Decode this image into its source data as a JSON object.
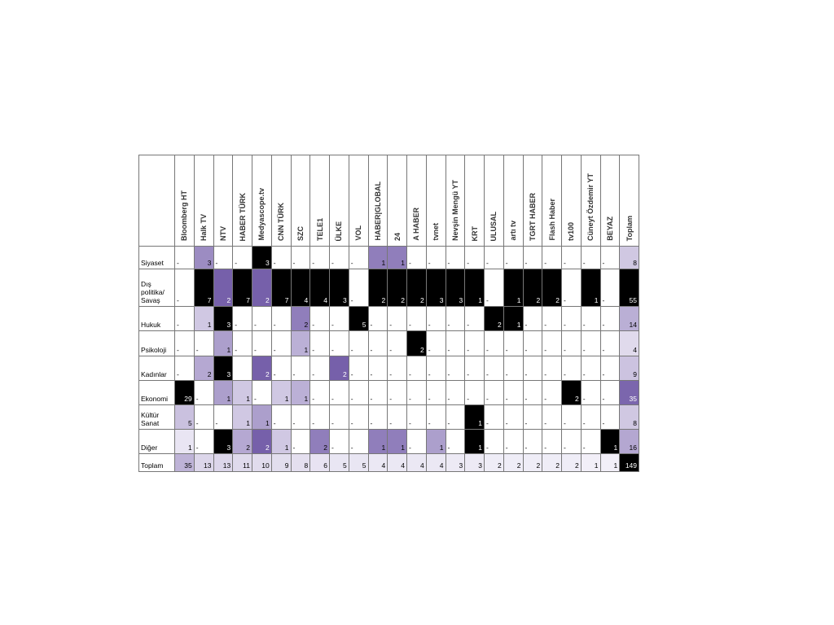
{
  "table": {
    "columns": [
      "Bloomberg HT",
      "Halk TV",
      "NTV",
      "HABER TÜRK",
      "Medyascope.tv",
      "CNN TÜRK",
      "SZC",
      "TELE1",
      "ÜLKE",
      "VOL",
      "HABER|GLOBAL",
      "24",
      "A HABER",
      "tvnet",
      "Nevşin Mengü YT",
      "KRT",
      "ULUSAL",
      "artı tv",
      "TGRT HABER",
      "Flash Haber",
      "tv100",
      "Cüneyt Özdemir YT",
      "BEYAZ",
      "Toplam"
    ],
    "rows": [
      {
        "label": "Siyaset",
        "cells": [
          "-",
          3,
          "-",
          "-",
          3,
          "-",
          "-",
          "-",
          "-",
          "-",
          1,
          1,
          "-",
          "-",
          "-",
          "-",
          "-",
          "-",
          "-",
          "-",
          "-",
          "-",
          "-",
          8
        ]
      },
      {
        "label": "Dış politika/ Savaş",
        "cells": [
          "-",
          7,
          2,
          7,
          2,
          7,
          4,
          4,
          3,
          "-",
          2,
          2,
          2,
          3,
          3,
          1,
          "-",
          1,
          2,
          2,
          "-",
          1,
          "-",
          55
        ]
      },
      {
        "label": "Hukuk",
        "cells": [
          "-",
          1,
          3,
          "-",
          "-",
          "-",
          2,
          "-",
          "-",
          5,
          "-",
          "-",
          "-",
          "-",
          "-",
          "-",
          2,
          1,
          "-",
          "-",
          "-",
          "-",
          "-",
          14
        ]
      },
      {
        "label": "Psikoloji",
        "cells": [
          "-",
          "-",
          1,
          "-",
          "-",
          "-",
          1,
          "-",
          "-",
          "-",
          "-",
          "-",
          2,
          "-",
          "-",
          "-",
          "-",
          "-",
          "-",
          "-",
          "-",
          "-",
          "-",
          4
        ]
      },
      {
        "label": "Kadınlar",
        "cells": [
          "-",
          2,
          3,
          null,
          2,
          "-",
          "-",
          "-",
          2,
          "-",
          "-",
          "-",
          "-",
          "-",
          "-",
          "-",
          "-",
          "-",
          "-",
          "-",
          "-",
          "-",
          "-",
          9
        ]
      },
      {
        "label": "Ekonomi",
        "cells": [
          29,
          "-",
          1,
          1,
          "-",
          1,
          1,
          "-",
          "-",
          "-",
          "-",
          "-",
          "-",
          "-",
          "-",
          "-",
          "-",
          "-",
          "-",
          "-",
          2,
          "-",
          "-",
          35
        ]
      },
      {
        "label": "Kültür Sanat",
        "cells": [
          5,
          "-",
          "-",
          1,
          1,
          "-",
          "-",
          "-",
          "-",
          "-",
          "-",
          "-",
          "-",
          "-",
          "-",
          1,
          "-",
          "-",
          "-",
          "-",
          "-",
          "-",
          "-",
          8
        ]
      },
      {
        "label": "Diğer",
        "cells": [
          1,
          "-",
          3,
          2,
          2,
          1,
          "-",
          2,
          "-",
          "-",
          1,
          1,
          "-",
          1,
          "-",
          1,
          "-",
          "-",
          "-",
          "-",
          "-",
          "-",
          1,
          16
        ]
      },
      {
        "label": "Toplam",
        "cells": [
          35,
          13,
          13,
          11,
          10,
          9,
          8,
          6,
          5,
          5,
          4,
          4,
          4,
          4,
          3,
          3,
          2,
          2,
          2,
          2,
          2,
          1,
          1,
          149
        ]
      }
    ]
  }
}
